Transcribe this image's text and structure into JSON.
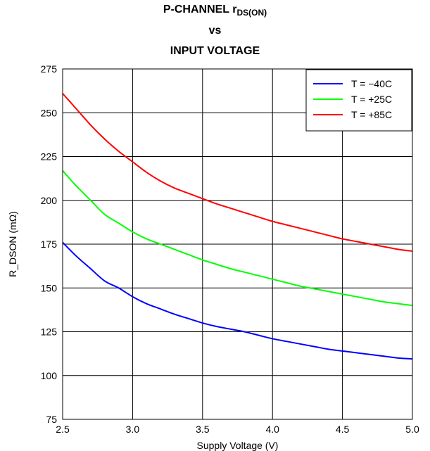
{
  "chart_data": {
    "type": "line",
    "title_main": "P-CHANNEL r",
    "title_sub": "DS(ON)",
    "title_line2": "vs",
    "title_line3": "INPUT VOLTAGE",
    "xlabel": "Supply Voltage (V)",
    "ylabel": "R_DSON (mΩ)",
    "xlim": [
      2.5,
      5.0
    ],
    "ylim": [
      75,
      275
    ],
    "xticks": [
      2.5,
      3.0,
      3.5,
      4.0,
      4.5,
      5.0
    ],
    "xtick_labels": [
      "2.5",
      "3.0",
      "3.5",
      "4.0",
      "4.5",
      "5.0"
    ],
    "yticks": [
      75,
      100,
      125,
      150,
      175,
      200,
      225,
      250,
      275
    ],
    "ytick_labels": [
      "75",
      "100",
      "125",
      "150",
      "175",
      "200",
      "225",
      "250",
      "275"
    ],
    "grid": true,
    "legend_position": "top-right",
    "x": [
      2.5,
      2.6,
      2.7,
      2.8,
      2.9,
      3.0,
      3.1,
      3.2,
      3.3,
      3.4,
      3.5,
      3.6,
      3.7,
      3.8,
      3.9,
      4.0,
      4.1,
      4.2,
      4.3,
      4.4,
      4.5,
      4.6,
      4.7,
      4.8,
      4.9,
      5.0
    ],
    "series": [
      {
        "name": "T = −40C",
        "color": "#0000ff",
        "values": [
          176,
          168,
          161,
          154,
          150,
          145,
          141,
          138,
          135,
          132.5,
          130,
          128,
          126.5,
          125,
          123,
          121,
          119.5,
          118,
          116.5,
          115,
          114,
          113,
          112,
          111,
          110,
          109.5
        ]
      },
      {
        "name": "T = +25C",
        "color": "#00ff00",
        "values": [
          217,
          208,
          200,
          192,
          187,
          182,
          178,
          175,
          172,
          169,
          166,
          163.5,
          161,
          159,
          157,
          155,
          153,
          151,
          149.5,
          148,
          146.5,
          145,
          143.5,
          142,
          141,
          140
        ]
      },
      {
        "name": "T = +85C",
        "color": "#ff0000",
        "values": [
          261,
          252,
          243,
          235,
          228,
          222,
          216,
          211,
          207,
          204,
          201,
          198,
          195.5,
          193,
          190.5,
          188,
          186,
          184,
          182,
          180,
          178,
          176.5,
          175,
          173.5,
          172,
          171
        ]
      }
    ]
  }
}
